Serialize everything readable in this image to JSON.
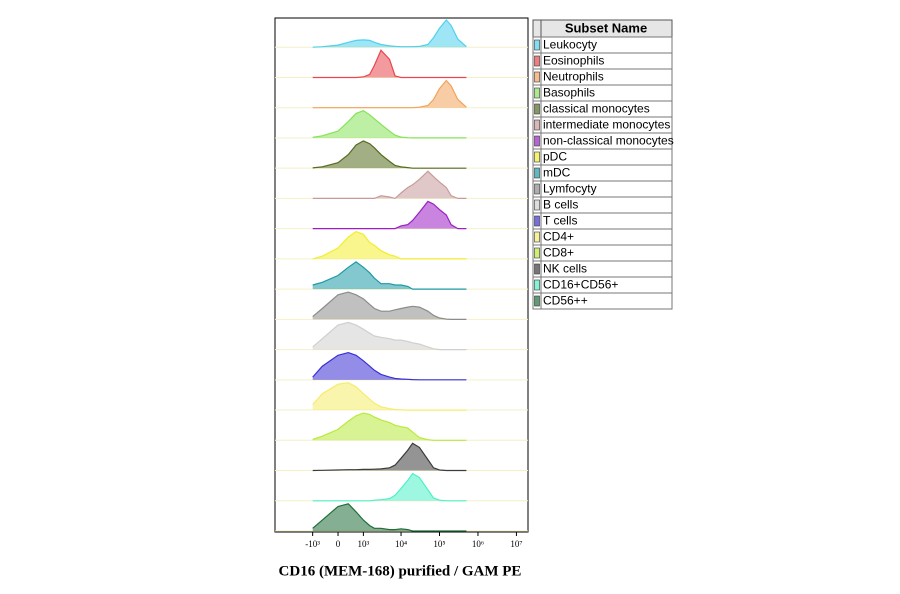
{
  "chart_data": {
    "type": "ridgeline",
    "xlabel": "CD16 (MEM-168) purified / GAM PE",
    "legend_title": "Subset Name",
    "xscale": "biexponential",
    "xlim": [
      -10000,
      20000000
    ],
    "xticks": [
      {
        "value": -1000,
        "label": "-10³"
      },
      0,
      {
        "value": 1000,
        "label": "10³"
      },
      {
        "value": 10000,
        "label": "10⁴"
      },
      {
        "value": 100000,
        "label": "10⁵"
      },
      {
        "value": 1000000,
        "label": "10⁶"
      },
      {
        "value": 10000000,
        "label": "10⁷"
      }
    ],
    "x": [
      -1000,
      -500,
      0,
      300,
      600,
      1000,
      1500,
      2000,
      3000,
      5000,
      7000,
      10000,
      15000,
      20000,
      30000,
      50000,
      70000,
      100000,
      150000,
      200000,
      300000,
      500000
    ],
    "series": [
      {
        "name": "Leukocyty",
        "color": "#4fd0ee",
        "values": [
          0,
          2,
          8,
          18,
          25,
          27,
          25,
          18,
          10,
          5,
          3,
          2,
          2,
          2,
          3,
          10,
          35,
          70,
          100,
          80,
          30,
          2
        ]
      },
      {
        "name": "Eosinophils",
        "color": "#e8474f",
        "values": [
          0,
          0,
          0,
          0,
          0,
          2,
          10,
          40,
          90,
          60,
          5,
          0,
          0,
          0,
          0,
          0,
          0,
          0,
          0,
          0,
          0,
          0
        ]
      },
      {
        "name": "Neutrophils",
        "color": "#f3a25a",
        "values": [
          0,
          0,
          0,
          0,
          0,
          0,
          0,
          0,
          0,
          0,
          0,
          0,
          0,
          0,
          2,
          8,
          30,
          70,
          100,
          80,
          30,
          2
        ]
      },
      {
        "name": "Basophils",
        "color": "#86e35a",
        "values": [
          2,
          8,
          25,
          60,
          90,
          100,
          85,
          70,
          50,
          25,
          10,
          3,
          1,
          0,
          0,
          0,
          0,
          0,
          0,
          0,
          0,
          0
        ]
      },
      {
        "name": "classical monocytes",
        "color": "#556b1e",
        "values": [
          1,
          5,
          20,
          50,
          85,
          100,
          90,
          75,
          50,
          25,
          10,
          5,
          2,
          0,
          0,
          0,
          0,
          0,
          0,
          0,
          0,
          0
        ]
      },
      {
        "name": "intermediate monocytes",
        "color": "#c99a9a",
        "values": [
          0,
          0,
          0,
          0,
          0,
          0,
          0,
          0,
          10,
          5,
          0,
          20,
          40,
          50,
          70,
          100,
          80,
          60,
          40,
          10,
          0,
          0
        ]
      },
      {
        "name": "non-classical monocytes",
        "color": "#9b1fc4",
        "values": [
          0,
          0,
          0,
          0,
          0,
          0,
          0,
          0,
          0,
          0,
          0,
          10,
          15,
          30,
          60,
          100,
          90,
          70,
          50,
          15,
          0,
          0
        ]
      },
      {
        "name": "pDC",
        "color": "#f2ee2e",
        "values": [
          0,
          10,
          40,
          80,
          100,
          90,
          60,
          50,
          30,
          15,
          10,
          0,
          0,
          0,
          0,
          0,
          0,
          0,
          0,
          0,
          0,
          0
        ]
      },
      {
        "name": "mDC",
        "color": "#1d9aa6",
        "values": [
          15,
          25,
          50,
          80,
          100,
          80,
          60,
          40,
          20,
          20,
          15,
          15,
          10,
          0,
          0,
          0,
          0,
          0,
          0,
          0,
          0,
          0
        ]
      },
      {
        "name": "Lymfocyty",
        "color": "#8c8c8c",
        "values": [
          10,
          40,
          90,
          100,
          90,
          75,
          55,
          40,
          30,
          30,
          35,
          40,
          45,
          48,
          45,
          30,
          15,
          5,
          1,
          0,
          0,
          0
        ]
      },
      {
        "name": "B cells",
        "color": "#cfcfcf",
        "values": [
          10,
          40,
          90,
          100,
          90,
          75,
          60,
          50,
          45,
          40,
          35,
          35,
          30,
          25,
          20,
          10,
          3,
          0,
          0,
          0,
          0,
          0
        ]
      },
      {
        "name": "T cells",
        "color": "#3a2fd6",
        "values": [
          10,
          50,
          90,
          100,
          90,
          70,
          50,
          35,
          20,
          10,
          5,
          3,
          2,
          1,
          0,
          0,
          0,
          0,
          0,
          0,
          0,
          0
        ]
      },
      {
        "name": "CD4+",
        "color": "#f5ec6a",
        "values": [
          20,
          60,
          95,
          100,
          85,
          60,
          40,
          25,
          12,
          5,
          2,
          1,
          0,
          0,
          0,
          0,
          0,
          0,
          0,
          0,
          0,
          0
        ]
      },
      {
        "name": "CD8+",
        "color": "#b8ea3a",
        "values": [
          3,
          15,
          40,
          70,
          90,
          100,
          95,
          85,
          75,
          65,
          55,
          50,
          45,
          30,
          10,
          2,
          0,
          0,
          0,
          0,
          0,
          0
        ]
      },
      {
        "name": "NK cells",
        "color": "#3c3c3c",
        "values": [
          0,
          1,
          2,
          3,
          3,
          4,
          4,
          5,
          6,
          10,
          20,
          45,
          75,
          100,
          85,
          40,
          10,
          2,
          0,
          0,
          0,
          0
        ]
      },
      {
        "name": "CD16+CD56+",
        "color": "#4ff0c6",
        "values": [
          0,
          0,
          0,
          0,
          0,
          0,
          0,
          2,
          4,
          8,
          20,
          45,
          75,
          100,
          85,
          40,
          10,
          2,
          0,
          0,
          0,
          0
        ]
      },
      {
        "name": "CD56++",
        "color": "#1f6e3a",
        "values": [
          10,
          40,
          90,
          100,
          70,
          40,
          20,
          10,
          10,
          5,
          5,
          8,
          5,
          0,
          0,
          0,
          0,
          0,
          0,
          0,
          0,
          0
        ]
      }
    ]
  }
}
